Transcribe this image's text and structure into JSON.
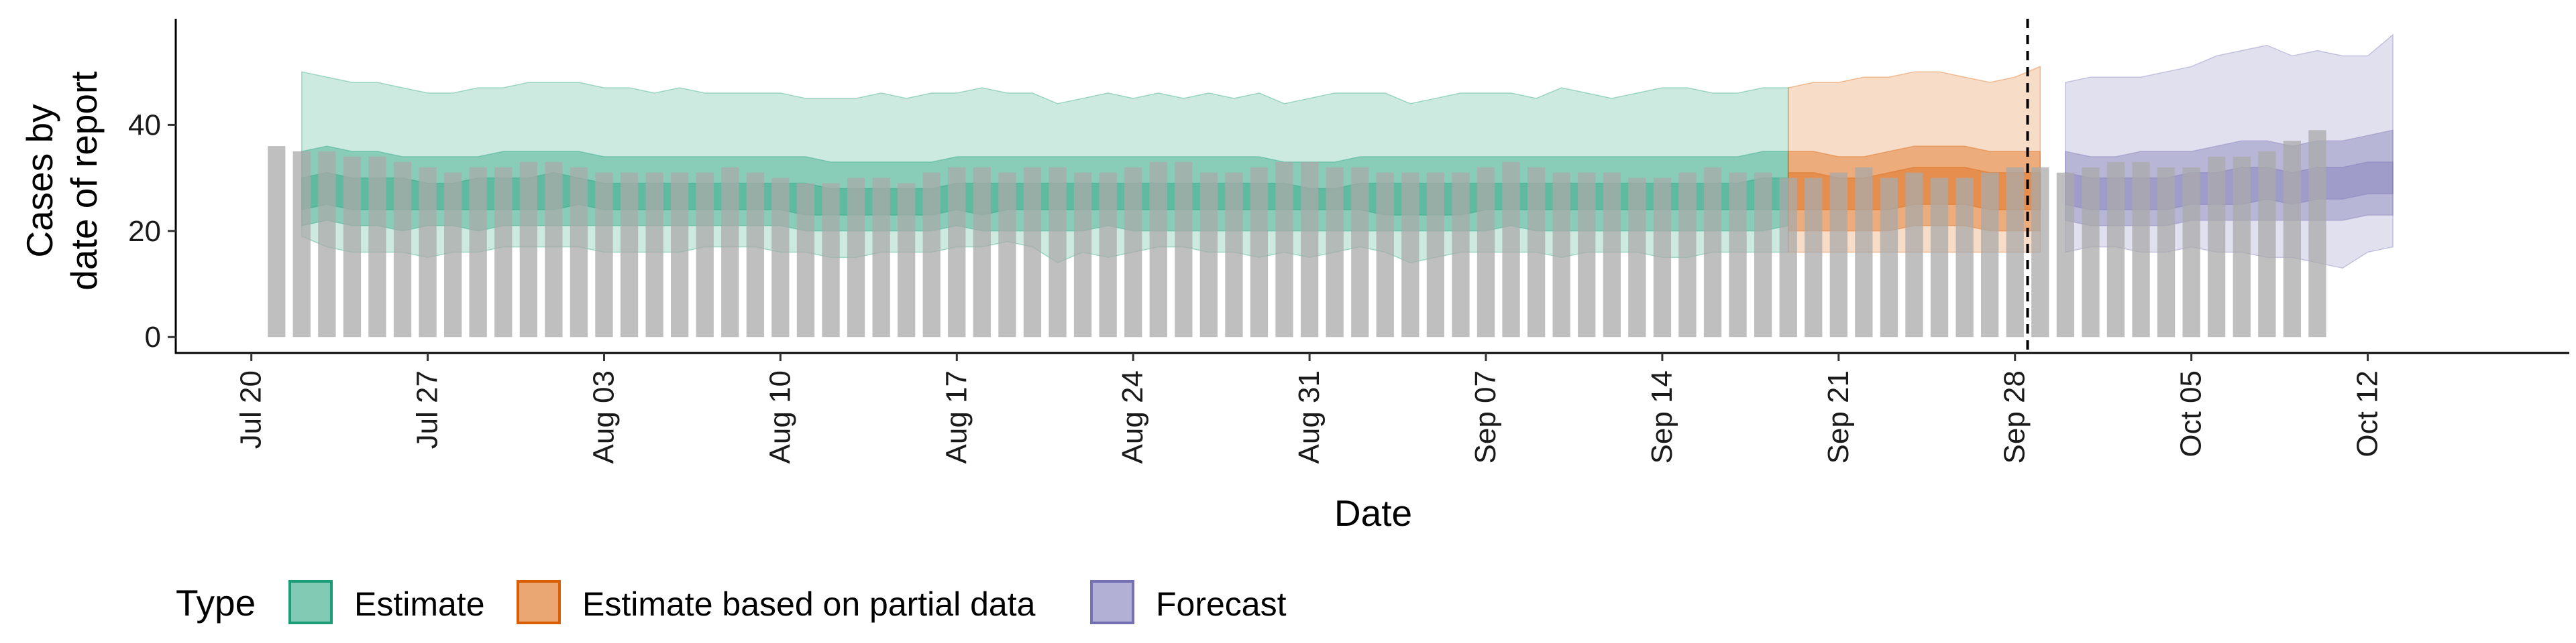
{
  "chart_data": {
    "type": "bar",
    "xlabel": "Date",
    "ylabel_lines": [
      "Cases by",
      "date of report"
    ],
    "ylim": [
      -3,
      60
    ],
    "y_ticks": [
      0,
      20,
      40
    ],
    "x_ticks": [
      {
        "date": "2020-07-20",
        "label": "Jul 20"
      },
      {
        "date": "2020-07-27",
        "label": "Jul 27"
      },
      {
        "date": "2020-08-03",
        "label": "Aug 03"
      },
      {
        "date": "2020-08-10",
        "label": "Aug 10"
      },
      {
        "date": "2020-08-17",
        "label": "Aug 17"
      },
      {
        "date": "2020-08-24",
        "label": "Aug 24"
      },
      {
        "date": "2020-08-31",
        "label": "Aug 31"
      },
      {
        "date": "2020-09-07",
        "label": "Sep 07"
      },
      {
        "date": "2020-09-14",
        "label": "Sep 14"
      },
      {
        "date": "2020-09-21",
        "label": "Sep 21"
      },
      {
        "date": "2020-09-28",
        "label": "Sep 28"
      },
      {
        "date": "2020-10-05",
        "label": "Oct 05"
      },
      {
        "date": "2020-10-12",
        "label": "Oct 12"
      }
    ],
    "x_range": [
      "2020-07-17",
      "2020-10-20"
    ],
    "forecast_start": "2020-09-29",
    "observed_cases": {
      "start_date": "2020-07-21",
      "values": [
        36,
        35,
        35,
        34,
        34,
        33,
        32,
        31,
        32,
        32,
        33,
        33,
        32,
        31,
        31,
        31,
        31,
        31,
        32,
        31,
        30,
        29,
        29,
        30,
        30,
        29,
        31,
        32,
        32,
        31,
        32,
        32,
        31,
        31,
        32,
        33,
        33,
        31,
        31,
        32,
        33,
        33,
        32,
        32,
        31,
        31,
        31,
        31,
        32,
        33,
        32,
        31,
        31,
        31,
        30,
        30,
        31,
        32,
        31,
        31,
        30,
        30,
        31,
        32,
        30,
        31,
        30,
        30,
        31,
        32,
        32,
        31,
        32,
        33,
        33,
        32,
        32,
        34,
        34,
        35,
        37,
        39
      ]
    },
    "legend_title": "Type",
    "series": [
      {
        "name": "Estimate",
        "color": "#1b9e77",
        "start_date": "2020-07-22",
        "median": [
          27,
          27,
          27,
          27,
          26,
          26,
          26,
          26,
          27,
          27,
          27,
          27,
          26,
          26,
          26,
          26,
          26,
          26,
          26,
          26,
          26,
          26,
          25,
          25,
          25,
          25,
          26,
          26,
          26,
          26,
          26,
          26,
          26,
          26,
          26,
          26,
          26,
          26,
          26,
          26,
          26,
          26,
          26,
          26,
          26,
          26,
          26,
          26,
          26,
          26,
          26,
          26,
          26,
          26,
          26,
          26,
          26,
          26,
          26,
          26
        ],
        "inner": {
          "lower": [
            24,
            25,
            24,
            24,
            24,
            24,
            24,
            24,
            24,
            24,
            24,
            25,
            24,
            24,
            24,
            24,
            24,
            24,
            24,
            24,
            23,
            23,
            23,
            23,
            23,
            23,
            24,
            23,
            24,
            24,
            24,
            24,
            24,
            24,
            24,
            24,
            24,
            24,
            24,
            24,
            24,
            24,
            24,
            23,
            23,
            23,
            23,
            24,
            24,
            24,
            24,
            24,
            24,
            24,
            24,
            24,
            24,
            24,
            24,
            24
          ],
          "upper": [
            30,
            31,
            30,
            30,
            30,
            29,
            29,
            30,
            30,
            30,
            31,
            30,
            29,
            29,
            29,
            29,
            29,
            29,
            29,
            29,
            29,
            28,
            28,
            28,
            28,
            28,
            29,
            29,
            29,
            29,
            29,
            29,
            29,
            29,
            29,
            29,
            29,
            29,
            29,
            29,
            28,
            28,
            29,
            29,
            29,
            29,
            29,
            29,
            29,
            29,
            29,
            29,
            29,
            29,
            29,
            29,
            29,
            29,
            30,
            30
          ]
        },
        "middle": {
          "lower": [
            21,
            22,
            21,
            21,
            20,
            21,
            21,
            20,
            21,
            21,
            21,
            21,
            21,
            21,
            21,
            21,
            21,
            21,
            21,
            21,
            20,
            20,
            20,
            20,
            20,
            20,
            21,
            20,
            20,
            20,
            20,
            20,
            21,
            20,
            20,
            20,
            20,
            20,
            20,
            20,
            20,
            20,
            20,
            20,
            20,
            20,
            20,
            20,
            21,
            20,
            20,
            20,
            20,
            20,
            20,
            20,
            20,
            20,
            20,
            21
          ],
          "upper": [
            35,
            36,
            35,
            35,
            34,
            34,
            34,
            34,
            35,
            35,
            35,
            35,
            34,
            34,
            34,
            34,
            34,
            34,
            34,
            34,
            34,
            33,
            33,
            33,
            33,
            33,
            34,
            34,
            34,
            34,
            34,
            34,
            34,
            34,
            34,
            34,
            34,
            34,
            34,
            33,
            33,
            33,
            34,
            34,
            34,
            34,
            34,
            34,
            34,
            34,
            34,
            34,
            34,
            34,
            34,
            34,
            34,
            34,
            35,
            35
          ]
        },
        "outer": {
          "lower": [
            19,
            17,
            16,
            16,
            16,
            15,
            16,
            16,
            17,
            17,
            17,
            17,
            16,
            16,
            16,
            16,
            17,
            17,
            17,
            16,
            16,
            15,
            15,
            16,
            16,
            16,
            17,
            17,
            18,
            17,
            14,
            16,
            15,
            16,
            17,
            17,
            16,
            16,
            15,
            16,
            15,
            16,
            17,
            16,
            14,
            15,
            16,
            16,
            16,
            16,
            15,
            16,
            16,
            16,
            15,
            15,
            16,
            16,
            16,
            16
          ],
          "upper": [
            50,
            49,
            48,
            48,
            47,
            46,
            46,
            47,
            47,
            48,
            48,
            48,
            47,
            47,
            46,
            47,
            46,
            46,
            46,
            46,
            45,
            45,
            45,
            46,
            45,
            46,
            46,
            47,
            46,
            46,
            44,
            45,
            46,
            45,
            46,
            45,
            46,
            45,
            46,
            44,
            45,
            46,
            46,
            46,
            44,
            45,
            46,
            46,
            46,
            45,
            47,
            46,
            45,
            46,
            47,
            47,
            46,
            46,
            47,
            47
          ]
        }
      },
      {
        "name": "Estimate based on partial data",
        "color": "#d95f02",
        "start_date": "2020-09-19",
        "median": [
          27,
          27,
          27,
          27,
          28,
          28,
          28,
          28,
          27,
          27,
          27
        ],
        "inner": {
          "lower": [
            24,
            24,
            24,
            24,
            24,
            25,
            25,
            25,
            24,
            24,
            24
          ],
          "upper": [
            31,
            31,
            30,
            30,
            31,
            32,
            32,
            32,
            31,
            31,
            31
          ]
        },
        "middle": {
          "lower": [
            20,
            20,
            20,
            20,
            20,
            21,
            21,
            21,
            20,
            20,
            20
          ],
          "upper": [
            35,
            35,
            34,
            34,
            35,
            36,
            36,
            36,
            35,
            35,
            35
          ]
        },
        "outer": {
          "lower": [
            16,
            16,
            16,
            16,
            16,
            16,
            16,
            16,
            16,
            16,
            16
          ],
          "upper": [
            47,
            48,
            48,
            49,
            49,
            50,
            50,
            49,
            48,
            49,
            51
          ]
        }
      },
      {
        "name": "Forecast",
        "color": "#7570b3",
        "start_date": "2020-09-30",
        "median": [
          28,
          27,
          27,
          27,
          27,
          28,
          28,
          28,
          29,
          28,
          29,
          29,
          30,
          30
        ],
        "inner": {
          "lower": [
            25,
            24,
            24,
            24,
            24,
            25,
            25,
            25,
            26,
            25,
            26,
            26,
            27,
            27
          ],
          "upper": [
            31,
            30,
            30,
            30,
            30,
            31,
            31,
            32,
            32,
            31,
            32,
            32,
            33,
            33
          ]
        },
        "middle": {
          "lower": [
            22,
            21,
            21,
            21,
            21,
            22,
            22,
            22,
            22,
            22,
            22,
            22,
            23,
            23
          ],
          "upper": [
            35,
            34,
            34,
            35,
            35,
            35,
            36,
            37,
            37,
            36,
            37,
            37,
            38,
            39
          ]
        },
        "outer": {
          "lower": [
            16,
            17,
            17,
            16,
            16,
            17,
            16,
            16,
            15,
            15,
            14,
            13,
            16,
            17
          ],
          "upper": [
            48,
            49,
            49,
            49,
            50,
            51,
            53,
            54,
            55,
            53,
            54,
            53,
            53,
            57
          ]
        }
      }
    ]
  }
}
